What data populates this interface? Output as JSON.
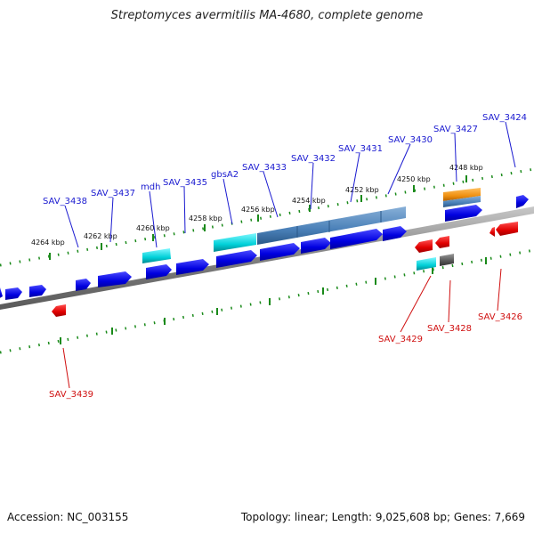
{
  "title": "Streptomyces avermitilis MA-4680, complete genome",
  "footer": {
    "accession": "Accession: NC_003155",
    "summary": "Topology: linear; Length: 9,025,608 bp; Genes: 7,669"
  },
  "colors": {
    "forward_gene": "#0000e0",
    "reverse_gene": "#e00000",
    "cyan_feature": "#00d0d8",
    "steelblue_feature": "#4a80b8",
    "orange_feature": "#f09010",
    "gray_feature": "#555555",
    "tick_marks": "#1a8a1a",
    "backbone": "#808080",
    "forward_label": "#1a1ad0",
    "reverse_label": "#d01010"
  },
  "scale_ticks": [
    {
      "label": "4264 kbp"
    },
    {
      "label": "4262 kbp"
    },
    {
      "label": "4260 kbp"
    },
    {
      "label": "4258 kbp"
    },
    {
      "label": "4256 kbp"
    },
    {
      "label": "4254 kbp"
    },
    {
      "label": "4252 kbp"
    },
    {
      "label": "4250 kbp"
    },
    {
      "label": "4248 kbp"
    }
  ],
  "forward_genes": [
    {
      "name": "SAV_3438"
    },
    {
      "name": "SAV_3437"
    },
    {
      "name": "mdh"
    },
    {
      "name": "SAV_3435"
    },
    {
      "name": "gbsA2"
    },
    {
      "name": "SAV_3433"
    },
    {
      "name": "SAV_3432"
    },
    {
      "name": "SAV_3431"
    },
    {
      "name": "SAV_3430"
    },
    {
      "name": "SAV_3427"
    },
    {
      "name": "SAV_3424"
    }
  ],
  "reverse_genes": [
    {
      "name": "SAV_3439"
    },
    {
      "name": "SAV_3429"
    },
    {
      "name": "SAV_3428"
    },
    {
      "name": "SAV_3426"
    }
  ]
}
